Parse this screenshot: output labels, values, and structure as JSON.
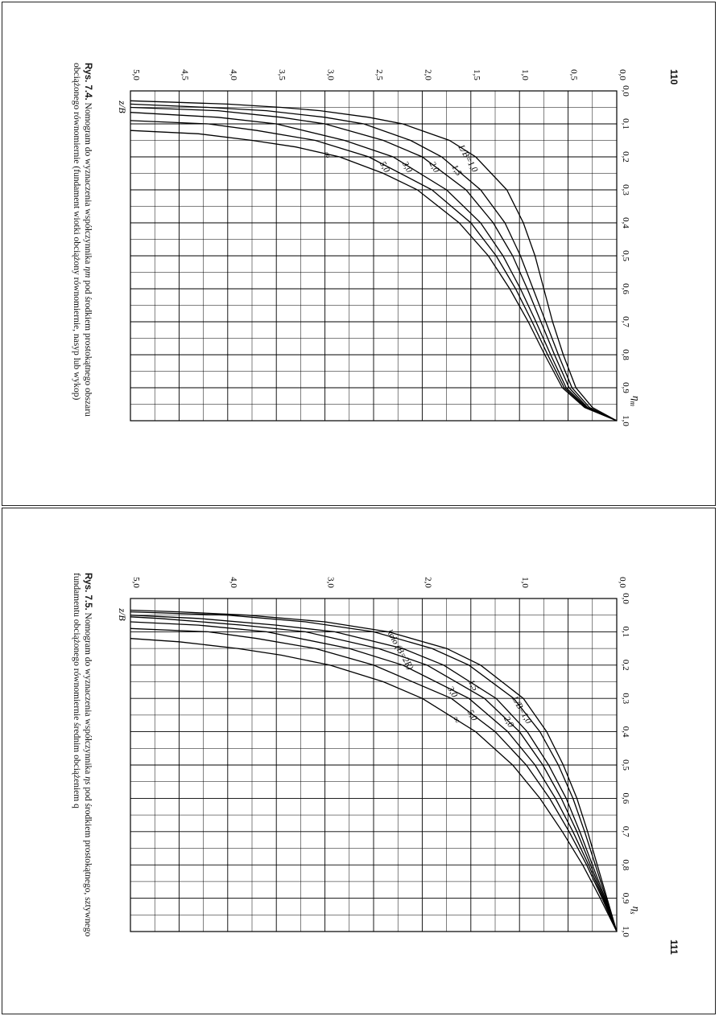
{
  "pages": [
    {
      "page_number": "110"
    },
    {
      "page_number": "111"
    }
  ],
  "chart_data": [
    {
      "type": "line",
      "figure_label": "Rys. 7.4.",
      "caption_line1_pre": "Nomogram do wyznaczenia współczynnika ",
      "caption_symbol": "η",
      "caption_symbol_sub": "m",
      "caption_line1_post": " pod środkiem prostokątnego obszaru",
      "caption_line2": "obciążonego równomiernie (fundament wiotki obciążony równomiernie, nasyp lub wykop)",
      "x_axis_label": "η",
      "x_axis_label_sub": "m",
      "y_axis_label": "z/B",
      "xlim": [
        0,
        1
      ],
      "ylim": [
        0,
        5
      ],
      "x_ticks": [
        "0,0",
        "0,1",
        "0,2",
        "0,3",
        "0,4",
        "0,5",
        "0,6",
        "0,7",
        "0,8",
        "0,9",
        "1,0"
      ],
      "y_ticks": [
        "0,0",
        "0,5",
        "1,0",
        "1,5",
        "2,0",
        "2,5",
        "3,0",
        "3,5",
        "4,0",
        "4,5",
        "5,0"
      ],
      "grid_minor_x": 0.05,
      "grid_minor_y": 0.25,
      "series": [
        {
          "name": "L/B=1,0",
          "label": "L/B=1,0",
          "points": [
            [
              1.0,
              0
            ],
            [
              0.96,
              0.25
            ],
            [
              0.9,
              0.42
            ],
            [
              0.8,
              0.55
            ],
            [
              0.7,
              0.66
            ],
            [
              0.6,
              0.75
            ],
            [
              0.5,
              0.84
            ],
            [
              0.4,
              0.96
            ],
            [
              0.3,
              1.13
            ],
            [
              0.2,
              1.45
            ],
            [
              0.15,
              1.72
            ],
            [
              0.1,
              2.2
            ],
            [
              0.08,
              2.55
            ],
            [
              0.06,
              3.05
            ],
            [
              0.05,
              3.45
            ],
            [
              0.04,
              4.0
            ],
            [
              0.035,
              4.5
            ],
            [
              0.03,
              5.0
            ]
          ]
        },
        {
          "name": "L/B=1,5",
          "label": "1,5",
          "points": [
            [
              1.0,
              0
            ],
            [
              0.96,
              0.28
            ],
            [
              0.9,
              0.46
            ],
            [
              0.8,
              0.6
            ],
            [
              0.7,
              0.73
            ],
            [
              0.6,
              0.86
            ],
            [
              0.5,
              0.99
            ],
            [
              0.4,
              1.15
            ],
            [
              0.3,
              1.4
            ],
            [
              0.2,
              1.8
            ],
            [
              0.15,
              2.12
            ],
            [
              0.1,
              2.6
            ],
            [
              0.08,
              3.0
            ],
            [
              0.06,
              3.6
            ],
            [
              0.05,
              4.2
            ],
            [
              0.04,
              5.0
            ]
          ]
        },
        {
          "name": "L/B=2,0",
          "label": "2,0",
          "points": [
            [
              1.0,
              0
            ],
            [
              0.96,
              0.3
            ],
            [
              0.9,
              0.49
            ],
            [
              0.8,
              0.64
            ],
            [
              0.7,
              0.78
            ],
            [
              0.6,
              0.92
            ],
            [
              0.5,
              1.07
            ],
            [
              0.4,
              1.27
            ],
            [
              0.3,
              1.55
            ],
            [
              0.2,
              2.0
            ],
            [
              0.15,
              2.4
            ],
            [
              0.1,
              3.0
            ],
            [
              0.08,
              3.45
            ],
            [
              0.06,
              4.1
            ],
            [
              0.05,
              5.0
            ]
          ]
        },
        {
          "name": "L/B=3,0",
          "label": "3,0",
          "points": [
            [
              1.0,
              0
            ],
            [
              0.96,
              0.31
            ],
            [
              0.9,
              0.52
            ],
            [
              0.8,
              0.68
            ],
            [
              0.7,
              0.83
            ],
            [
              0.6,
              0.99
            ],
            [
              0.5,
              1.17
            ],
            [
              0.4,
              1.4
            ],
            [
              0.3,
              1.75
            ],
            [
              0.2,
              2.3
            ],
            [
              0.15,
              2.8
            ],
            [
              0.1,
              3.5
            ],
            [
              0.08,
              4.1
            ],
            [
              0.065,
              5.0
            ]
          ]
        },
        {
          "name": "L/B=5,0",
          "label": "5,0",
          "points": [
            [
              1.0,
              0
            ],
            [
              0.96,
              0.32
            ],
            [
              0.9,
              0.54
            ],
            [
              0.8,
              0.71
            ],
            [
              0.7,
              0.87
            ],
            [
              0.6,
              1.04
            ],
            [
              0.5,
              1.24
            ],
            [
              0.4,
              1.5
            ],
            [
              0.3,
              1.9
            ],
            [
              0.2,
              2.55
            ],
            [
              0.15,
              3.1
            ],
            [
              0.12,
              3.7
            ],
            [
              0.1,
              4.2
            ],
            [
              0.09,
              5.0
            ]
          ]
        },
        {
          "name": "L/B=∞",
          "label": "∞",
          "points": [
            [
              1.0,
              0
            ],
            [
              0.96,
              0.33
            ],
            [
              0.9,
              0.56
            ],
            [
              0.8,
              0.74
            ],
            [
              0.7,
              0.91
            ],
            [
              0.6,
              1.1
            ],
            [
              0.5,
              1.32
            ],
            [
              0.4,
              1.62
            ],
            [
              0.3,
              2.05
            ],
            [
              0.25,
              2.4
            ],
            [
              0.2,
              2.85
            ],
            [
              0.17,
              3.3
            ],
            [
              0.15,
              3.75
            ],
            [
              0.13,
              4.3
            ],
            [
              0.12,
              5.0
            ]
          ]
        }
      ]
    },
    {
      "type": "line",
      "figure_label": "Rys. 7.5.",
      "caption_line1_pre": "Nomogram do wyznaczenia współczynnika ",
      "caption_symbol": "η",
      "caption_symbol_sub": "s",
      "caption_line1_post": " pod środkiem prostokątnego, sztywnego",
      "caption_line2": "fundamentu obciążonego równomiernie średnim obciążeniem q",
      "x_axis_label": "η",
      "x_axis_label_sub": "s",
      "y_axis_label": "z/B",
      "xlim": [
        0,
        1
      ],
      "ylim": [
        0,
        5
      ],
      "x_ticks": [
        "0,0",
        "0,1",
        "0,2",
        "0,3",
        "0,4",
        "0,5",
        "0,6",
        "0,7",
        "0,8",
        "0,9",
        "1,0"
      ],
      "y_ticks": [
        "0,0",
        "1,0",
        "2,0",
        "3,0",
        "4,0",
        "5,0"
      ],
      "grid_minor_x": 0.05,
      "grid_minor_y": 0.25,
      "series": [
        {
          "name": "koło (B=2R)",
          "label": "koło (B=2R)",
          "points": [
            [
              1.0,
              0
            ],
            [
              0.9,
              0.1
            ],
            [
              0.8,
              0.2
            ],
            [
              0.7,
              0.3
            ],
            [
              0.6,
              0.41
            ],
            [
              0.5,
              0.55
            ],
            [
              0.4,
              0.72
            ],
            [
              0.3,
              0.96
            ],
            [
              0.2,
              1.4
            ],
            [
              0.15,
              1.75
            ],
            [
              0.1,
              2.35
            ],
            [
              0.07,
              3.0
            ],
            [
              0.05,
              3.8
            ],
            [
              0.04,
              4.5
            ],
            [
              0.035,
              5.0
            ]
          ]
        },
        {
          "name": "L/B=1,0",
          "label": "L/B=1,0",
          "points": [
            [
              1.0,
              0
            ],
            [
              0.9,
              0.11
            ],
            [
              0.8,
              0.22
            ],
            [
              0.7,
              0.33
            ],
            [
              0.6,
              0.45
            ],
            [
              0.5,
              0.6
            ],
            [
              0.4,
              0.79
            ],
            [
              0.3,
              1.06
            ],
            [
              0.2,
              1.52
            ],
            [
              0.15,
              1.9
            ],
            [
              0.1,
              2.5
            ],
            [
              0.07,
              3.2
            ],
            [
              0.05,
              4.0
            ],
            [
              0.04,
              5.0
            ]
          ]
        },
        {
          "name": "L/B=1,5",
          "label": "1,5",
          "points": [
            [
              1.0,
              0
            ],
            [
              0.9,
              0.12
            ],
            [
              0.8,
              0.25
            ],
            [
              0.7,
              0.38
            ],
            [
              0.6,
              0.52
            ],
            [
              0.5,
              0.7
            ],
            [
              0.4,
              0.92
            ],
            [
              0.3,
              1.24
            ],
            [
              0.2,
              1.78
            ],
            [
              0.15,
              2.2
            ],
            [
              0.1,
              2.9
            ],
            [
              0.08,
              3.5
            ],
            [
              0.06,
              4.3
            ],
            [
              0.05,
              5.0
            ]
          ]
        },
        {
          "name": "L/B=2,0",
          "label": "2,0",
          "points": [
            [
              1.0,
              0
            ],
            [
              0.9,
              0.13
            ],
            [
              0.8,
              0.27
            ],
            [
              0.7,
              0.41
            ],
            [
              0.6,
              0.57
            ],
            [
              0.5,
              0.76
            ],
            [
              0.4,
              1.0
            ],
            [
              0.3,
              1.36
            ],
            [
              0.2,
              1.95
            ],
            [
              0.15,
              2.45
            ],
            [
              0.1,
              3.2
            ],
            [
              0.08,
              3.85
            ],
            [
              0.06,
              4.7
            ],
            [
              0.055,
              5.0
            ]
          ]
        },
        {
          "name": "L/B=3,0",
          "label": "3,0",
          "points": [
            [
              1.0,
              0
            ],
            [
              0.9,
              0.14
            ],
            [
              0.8,
              0.29
            ],
            [
              0.7,
              0.45
            ],
            [
              0.6,
              0.63
            ],
            [
              0.5,
              0.84
            ],
            [
              0.4,
              1.12
            ],
            [
              0.3,
              1.52
            ],
            [
              0.2,
              2.2
            ],
            [
              0.15,
              2.75
            ],
            [
              0.1,
              3.6
            ],
            [
              0.08,
              4.3
            ],
            [
              0.07,
              5.0
            ]
          ]
        },
        {
          "name": "L/B=5,0",
          "label": "5,0",
          "points": [
            [
              1.0,
              0
            ],
            [
              0.9,
              0.15
            ],
            [
              0.8,
              0.31
            ],
            [
              0.7,
              0.49
            ],
            [
              0.6,
              0.69
            ],
            [
              0.5,
              0.93
            ],
            [
              0.4,
              1.25
            ],
            [
              0.3,
              1.7
            ],
            [
              0.2,
              2.5
            ],
            [
              0.15,
              3.1
            ],
            [
              0.12,
              3.7
            ],
            [
              0.1,
              4.2
            ],
            [
              0.09,
              5.0
            ]
          ]
        },
        {
          "name": "L/B=∞",
          "label": "∞",
          "points": [
            [
              1.0,
              0
            ],
            [
              0.9,
              0.17
            ],
            [
              0.8,
              0.35
            ],
            [
              0.7,
              0.56
            ],
            [
              0.6,
              0.79
            ],
            [
              0.5,
              1.07
            ],
            [
              0.4,
              1.45
            ],
            [
              0.3,
              2.0
            ],
            [
              0.25,
              2.4
            ],
            [
              0.2,
              2.95
            ],
            [
              0.17,
              3.45
            ],
            [
              0.15,
              3.9
            ],
            [
              0.13,
              4.5
            ],
            [
              0.12,
              5.0
            ]
          ]
        }
      ]
    }
  ]
}
